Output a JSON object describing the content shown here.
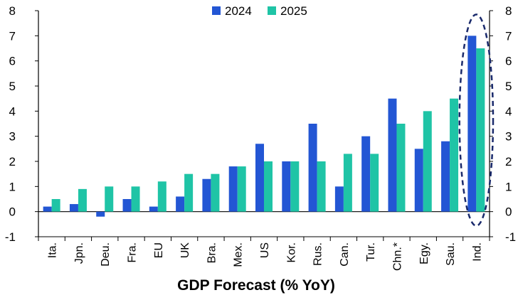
{
  "chart_data": {
    "type": "bar",
    "xlabel": "GDP Forecast (% YoY)",
    "ylim": [
      -1,
      8
    ],
    "yticks": [
      -1,
      0,
      1,
      2,
      3,
      4,
      5,
      6,
      7,
      8
    ],
    "grid": false,
    "legend_position": "top-center",
    "categories": [
      "Ita.",
      "Jpn.",
      "Deu.",
      "Fra.",
      "EU",
      "UK",
      "Bra.",
      "Mex.",
      "US",
      "Kor.",
      "Rus.",
      "Can.",
      "Tur.",
      "Chn.*",
      "Egy.",
      "Sau.",
      "Ind."
    ],
    "series": [
      {
        "name": "2024",
        "color": "#2356d4",
        "values": [
          0.2,
          0.3,
          -0.2,
          0.5,
          0.2,
          0.6,
          1.3,
          1.8,
          2.7,
          2.0,
          3.5,
          1.0,
          3.0,
          4.5,
          2.5,
          2.8,
          7.0
        ]
      },
      {
        "name": "2025",
        "color": "#1fc4a6",
        "values": [
          0.5,
          0.9,
          1.0,
          1.0,
          1.2,
          1.5,
          1.5,
          1.8,
          2.0,
          2.0,
          2.0,
          2.3,
          2.3,
          3.5,
          4.0,
          4.5,
          6.5
        ]
      }
    ],
    "annotation": {
      "type": "dashed-ellipse",
      "category": "Ind.",
      "color": "#1a2a6c"
    }
  }
}
